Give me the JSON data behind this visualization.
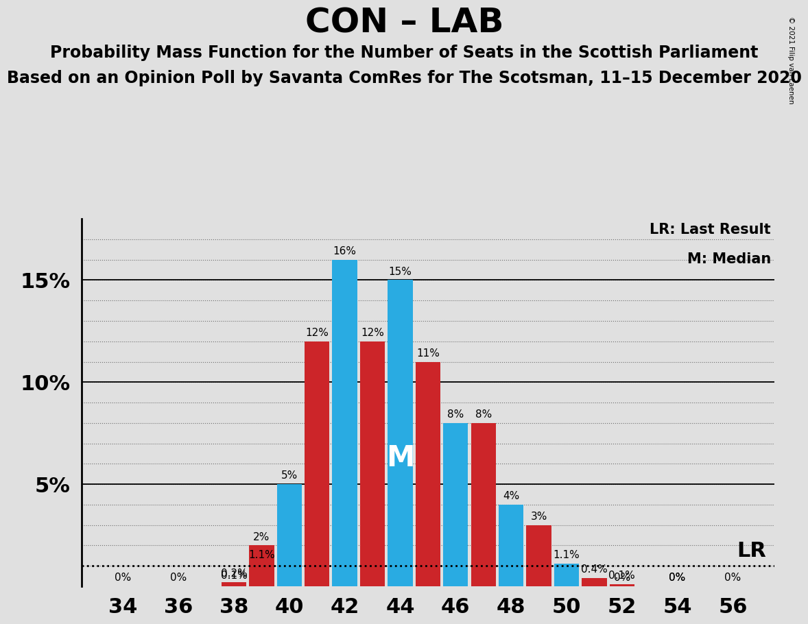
{
  "title": "CON – LAB",
  "subtitle1": "Probability Mass Function for the Number of Seats in the Scottish Parliament",
  "subtitle2": "Based on an Opinion Poll by Savanta ComRes for The Scotsman, 11–15 December 2020",
  "copyright": "© 2021 Filip van Laenen",
  "legend_lr": "LR: Last Result",
  "legend_m": "M: Median",
  "background_color": "#e0e0e0",
  "plot_bg_color": "#e0e0e0",
  "blue_color": "#29ABE2",
  "red_color": "#CC2529",
  "seats": [
    34,
    35,
    36,
    37,
    38,
    39,
    40,
    41,
    42,
    43,
    44,
    45,
    46,
    47,
    48,
    49,
    50,
    51,
    52,
    53,
    54,
    55,
    56
  ],
  "blue_values": [
    0.0,
    0.0,
    0.0,
    0.0,
    0.1,
    1.1,
    5.0,
    0.0,
    16.0,
    0.0,
    15.0,
    0.0,
    8.0,
    0.0,
    4.0,
    0.0,
    1.1,
    0.0,
    0.0,
    0.0,
    0.0,
    0.0,
    0.0
  ],
  "red_values": [
    0.0,
    0.0,
    0.0,
    0.0,
    0.2,
    2.0,
    0.0,
    12.0,
    0.0,
    12.0,
    0.0,
    11.0,
    0.0,
    8.0,
    0.0,
    3.0,
    0.0,
    0.4,
    0.1,
    0.0,
    0.0,
    0.0,
    0.0
  ],
  "blue_labels": {
    "34": "0%",
    "36": "0%",
    "38": "0.1%",
    "39": "1.1%",
    "40": "5%",
    "42": "16%",
    "44": "15%",
    "46": "8%",
    "48": "4%",
    "50": "1.1%",
    "52": "0%",
    "54": "0%",
    "56": "0%"
  },
  "red_labels": {
    "38": "0.2%",
    "39": "2%",
    "41": "12%",
    "43": "12%",
    "45": "11%",
    "47": "8%",
    "49": "3%",
    "51": "0.4%",
    "52": "0.1%",
    "54": "0%"
  },
  "median_seat": 44,
  "lr_value": 1.0,
  "xticks": [
    34,
    36,
    38,
    40,
    42,
    44,
    46,
    48,
    50,
    52,
    54,
    56
  ],
  "ylim": [
    0,
    18
  ],
  "xlim": [
    32.5,
    57.5
  ],
  "title_fontsize": 36,
  "subtitle_fontsize": 17,
  "axis_fontsize": 22,
  "label_fontsize": 11
}
